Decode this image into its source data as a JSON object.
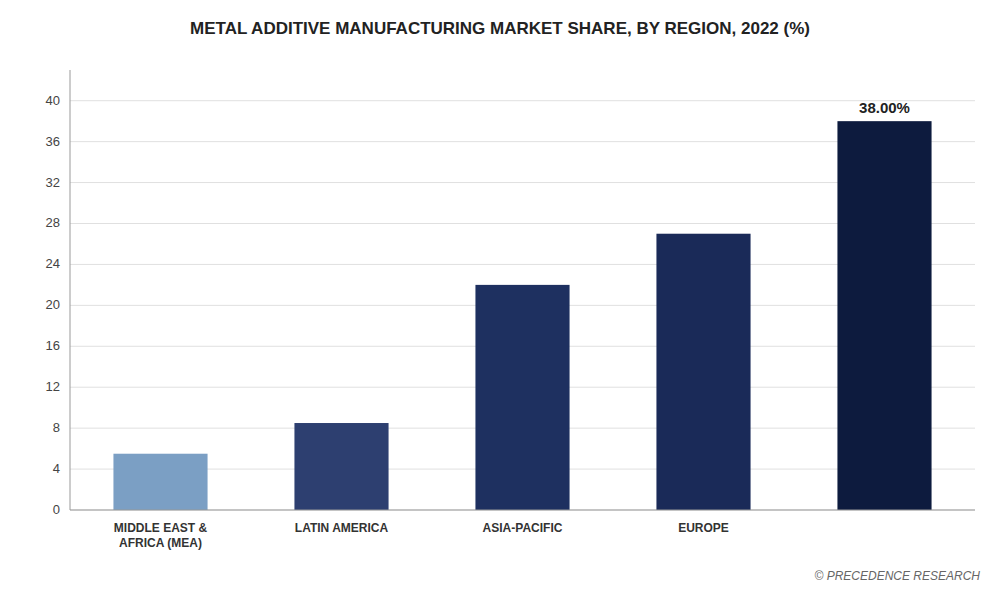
{
  "chart_data": {
    "type": "bar",
    "title": "METAL ADDITIVE MANUFACTURING MARKET SHARE, BY REGION, 2022 (%)",
    "categories": [
      "MIDDLE EAST &\nAFRICA (MEA)",
      "LATIN AMERICA",
      "ASIA-PACIFIC",
      "EUROPE",
      null
    ],
    "values": [
      5.5,
      8.5,
      22.0,
      27.0,
      38.0
    ],
    "colors": [
      "#7b9fc4",
      "#2d3f70",
      "#1e3060",
      "#1a2a58",
      "#0d1b3e"
    ],
    "data_labels": true,
    "value_labels": [
      null,
      null,
      null,
      null,
      "38.00%"
    ],
    "annotations": [
      "© PRECEDENCE RESEARCH"
    ],
    "ylim": [
      0,
      43
    ],
    "yticks": [
      0,
      4,
      8,
      12,
      16,
      20,
      24,
      28,
      32,
      36,
      40
    ],
    "grid": true
  }
}
